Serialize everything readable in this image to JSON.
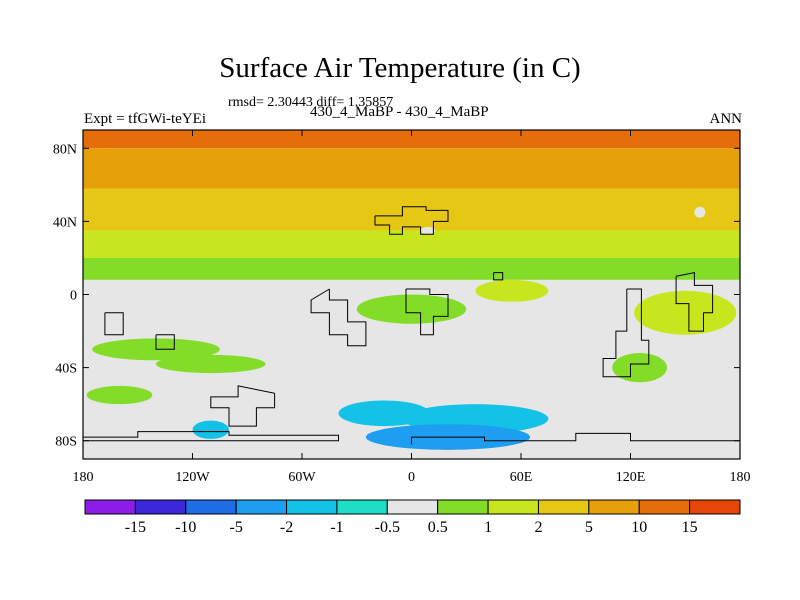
{
  "figure": {
    "title": "Surface Air Temperature (in C)",
    "stats": "rmsd= 2.30443 diff= 1.35857",
    "experiment": "Expt = tfGWi-teYEi",
    "comparison": "430_4_MaBP - 430_4_MaBP",
    "season": "ANN"
  },
  "map": {
    "lon_ticks": [
      "180",
      "120W",
      "60W",
      "0",
      "60E",
      "120E",
      "180"
    ],
    "lat_ticks": [
      "80N",
      "40N",
      "0",
      "40S",
      "80S"
    ],
    "bands": [
      {
        "lat_top": 90,
        "lat_bottom": 80,
        "level": 15
      },
      {
        "lat_top": 80,
        "lat_bottom": 58,
        "level": 10
      },
      {
        "lat_top": 58,
        "lat_bottom": 35,
        "level": 5
      },
      {
        "lat_top": 35,
        "lat_bottom": 20,
        "level": 2
      },
      {
        "lat_top": 20,
        "lat_bottom": 8,
        "level": 1
      },
      {
        "lat_top": 8,
        "lat_bottom": -90,
        "level": 0
      }
    ],
    "patches": [
      {
        "lon": -140,
        "lat": -30,
        "rx": 35,
        "ry": 6,
        "level": 1
      },
      {
        "lon": -110,
        "lat": -38,
        "rx": 30,
        "ry": 5,
        "level": 1
      },
      {
        "lon": -160,
        "lat": -55,
        "rx": 18,
        "ry": 5,
        "level": 1
      },
      {
        "lon": 0,
        "lat": -8,
        "rx": 30,
        "ry": 8,
        "level": 1
      },
      {
        "lon": 55,
        "lat": 2,
        "rx": 20,
        "ry": 6,
        "level": 2
      },
      {
        "lon": 150,
        "lat": -10,
        "rx": 28,
        "ry": 12,
        "level": 2
      },
      {
        "lon": 125,
        "lat": -40,
        "rx": 15,
        "ry": 8,
        "level": 1
      },
      {
        "lon": -15,
        "lat": -65,
        "rx": 25,
        "ry": 7,
        "level": -1
      },
      {
        "lon": 35,
        "lat": -68,
        "rx": 40,
        "ry": 8,
        "level": -1
      },
      {
        "lon": 20,
        "lat": -78,
        "rx": 45,
        "ry": 7,
        "level": -2
      },
      {
        "lon": -110,
        "lat": -74,
        "rx": 10,
        "ry": 5,
        "level": -1
      },
      {
        "lon": 9,
        "lat": 35,
        "rx": 4,
        "ry": 2,
        "level": 0
      },
      {
        "lon": 158,
        "lat": 45,
        "rx": 3,
        "ry": 3,
        "level": 0
      }
    ],
    "coastlines": [
      [
        [
          -20,
          43
        ],
        [
          -20,
          38
        ],
        [
          -12,
          38
        ],
        [
          -12,
          33
        ],
        [
          -5,
          33
        ],
        [
          -5,
          37
        ],
        [
          5,
          37
        ],
        [
          5,
          33
        ],
        [
          12,
          33
        ],
        [
          12,
          40
        ],
        [
          20,
          40
        ],
        [
          20,
          46
        ],
        [
          8,
          46
        ],
        [
          8,
          48
        ],
        [
          -5,
          48
        ],
        [
          -5,
          43
        ],
        [
          -20,
          43
        ]
      ],
      [
        [
          -45,
          3
        ],
        [
          -45,
          -3
        ],
        [
          -35,
          -3
        ],
        [
          -35,
          -15
        ],
        [
          -25,
          -15
        ],
        [
          -25,
          -28
        ],
        [
          -35,
          -28
        ],
        [
          -35,
          -22
        ],
        [
          -45,
          -22
        ],
        [
          -45,
          -10
        ],
        [
          -55,
          -10
        ],
        [
          -55,
          -3
        ],
        [
          -45,
          3
        ]
      ],
      [
        [
          -3,
          3
        ],
        [
          -3,
          -10
        ],
        [
          5,
          -10
        ],
        [
          5,
          -22
        ],
        [
          12,
          -22
        ],
        [
          12,
          -12
        ],
        [
          20,
          -12
        ],
        [
          20,
          0
        ],
        [
          10,
          0
        ],
        [
          10,
          3
        ],
        [
          -3,
          3
        ]
      ],
      [
        [
          -75,
          -54
        ],
        [
          -75,
          -62
        ],
        [
          -85,
          -62
        ],
        [
          -85,
          -72
        ],
        [
          -100,
          -72
        ],
        [
          -100,
          -62
        ],
        [
          -110,
          -62
        ],
        [
          -110,
          -56
        ],
        [
          -95,
          -56
        ],
        [
          -95,
          -50
        ],
        [
          -75,
          -54
        ]
      ],
      [
        [
          -180,
          -78
        ],
        [
          -150,
          -78
        ],
        [
          -150,
          -75
        ],
        [
          -100,
          -75
        ],
        [
          -100,
          -77
        ],
        [
          -40,
          -77
        ],
        [
          -40,
          -80
        ],
        [
          -150,
          -80
        ],
        [
          -180,
          -80
        ]
      ],
      [
        [
          0,
          -82
        ],
        [
          0,
          -78
        ],
        [
          40,
          -78
        ],
        [
          40,
          -80
        ],
        [
          90,
          -80
        ],
        [
          90,
          -76
        ],
        [
          120,
          -76
        ],
        [
          120,
          -80
        ],
        [
          180,
          -80
        ]
      ],
      [
        [
          118,
          3
        ],
        [
          118,
          -20
        ],
        [
          112,
          -20
        ],
        [
          112,
          -35
        ],
        [
          105,
          -35
        ],
        [
          105,
          -45
        ],
        [
          120,
          -45
        ],
        [
          120,
          -38
        ],
        [
          130,
          -38
        ],
        [
          130,
          -25
        ],
        [
          126,
          -25
        ],
        [
          126,
          3
        ],
        [
          118,
          3
        ]
      ],
      [
        [
          145,
          10
        ],
        [
          145,
          -5
        ],
        [
          152,
          -5
        ],
        [
          152,
          -20
        ],
        [
          160,
          -20
        ],
        [
          160,
          -10
        ],
        [
          165,
          -10
        ],
        [
          165,
          5
        ],
        [
          155,
          5
        ],
        [
          155,
          12
        ],
        [
          145,
          10
        ]
      ],
      [
        [
          -168,
          -10
        ],
        [
          -168,
          -22
        ],
        [
          -158,
          -22
        ],
        [
          -158,
          -10
        ],
        [
          -168,
          -10
        ]
      ],
      [
        [
          -140,
          -22
        ],
        [
          -140,
          -30
        ],
        [
          -130,
          -30
        ],
        [
          -130,
          -22
        ],
        [
          -140,
          -22
        ]
      ],
      [
        [
          45,
          12
        ],
        [
          45,
          8
        ],
        [
          50,
          8
        ],
        [
          50,
          12
        ],
        [
          45,
          12
        ]
      ]
    ]
  },
  "colorbar": {
    "colors": [
      "#8c1ee8",
      "#3c28d8",
      "#1e6ce6",
      "#1e9ef0",
      "#14c2e8",
      "#1ee0c8",
      "#e6e6e6",
      "#82dc28",
      "#c8e61e",
      "#e6c814",
      "#e6a00a",
      "#e66e0a",
      "#e6460a"
    ],
    "labels": [
      "-15",
      "-10",
      "-5",
      "-2",
      "-1",
      "-0.5",
      "0.5",
      "1",
      "2",
      "5",
      "10",
      "15"
    ]
  }
}
